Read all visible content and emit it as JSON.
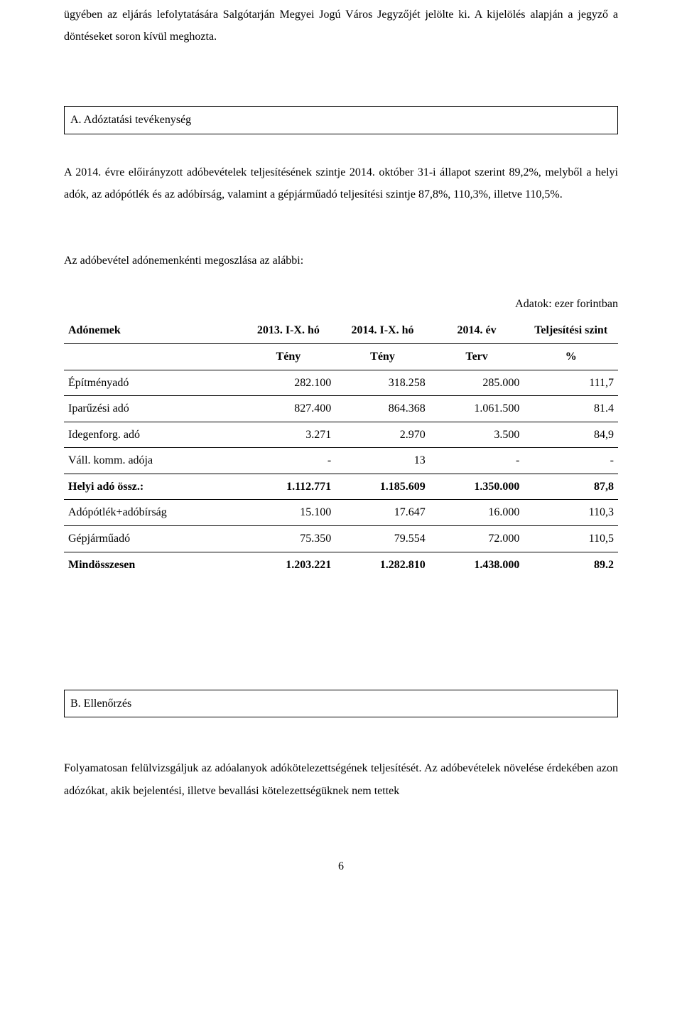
{
  "intro": {
    "p1": "ügyében az eljárás lefolytatására Salgótarján Megyei Jogú Város Jegyzőjét jelölte ki. A kijelölés alapján a jegyző a döntéseket soron kívül meghozta."
  },
  "sectionA": {
    "heading": "A. Adóztatási tevékenység",
    "p1": "A 2014. évre előirányzott adóbevételek teljesítésének szintje 2014. október 31-i állapot szerint 89,2%, melyből a helyi adók, az adópótlék és az adóbírság, valamint a gépjárműadó teljesítési szintje 87,8%, 110,3%, illetve 110,5%.",
    "p2": "Az adóbevétel adónemenkénti megoszlása az alábbi:"
  },
  "table": {
    "caption": "Adatok: ezer forintban",
    "headers": {
      "c0": "Adónemek",
      "c1": "2013. I-X. hó",
      "c2": "2014. I-X. hó",
      "c3": "2014. év",
      "c4": "Teljesítési szint"
    },
    "subheaders": {
      "c1": "Tény",
      "c2": "Tény",
      "c3": "Terv",
      "c4": "%"
    },
    "rows": [
      {
        "label": "Építményadó",
        "c1": "282.100",
        "c2": "318.258",
        "c3": "285.000",
        "c4": "111,7",
        "bold": false,
        "underline": true
      },
      {
        "label": "Iparűzési adó",
        "c1": "827.400",
        "c2": "864.368",
        "c3": "1.061.500",
        "c4": "81.4",
        "bold": false,
        "underline": true
      },
      {
        "label": "Idegenforg. adó",
        "c1": "3.271",
        "c2": "2.970",
        "c3": "3.500",
        "c4": "84,9",
        "bold": false,
        "underline": true
      },
      {
        "label": "Váll. komm. adója",
        "c1": "-",
        "c2": "13",
        "c3": "-",
        "c4": "-",
        "bold": false,
        "underline": true
      },
      {
        "label": "Helyi adó össz.:",
        "c1": "1.112.771",
        "c2": "1.185.609",
        "c3": "1.350.000",
        "c4": "87,8",
        "bold": true,
        "underline": true
      },
      {
        "label": "Adópótlék+adóbírság",
        "c1": "15.100",
        "c2": "17.647",
        "c3": "16.000",
        "c4": "110,3",
        "bold": false,
        "underline": true
      },
      {
        "label": "Gépjárműadó",
        "c1": "75.350",
        "c2": "79.554",
        "c3": "72.000",
        "c4": "110,5",
        "bold": false,
        "underline": true
      },
      {
        "label": "Mindösszesen",
        "c1": "1.203.221",
        "c2": "1.282.810",
        "c3": "1.438.000",
        "c4": "89.2",
        "bold": true,
        "underline": false
      }
    ],
    "styling": {
      "border_color": "#000000",
      "font_family": "Times New Roman",
      "header_fontsize": 16,
      "cell_fontsize": 16,
      "col_widths_pct": [
        32,
        17,
        17,
        17,
        17
      ]
    }
  },
  "sectionB": {
    "heading": "B. Ellenőrzés",
    "p1": "Folyamatosan felülvizsgáljuk az adóalanyok adókötelezettségének teljesítését. Az adóbevételek növelése érdekében azon adózókat, akik bejelentési, illetve bevallási kötelezettségüknek nem tettek"
  },
  "pageNumber": "6"
}
